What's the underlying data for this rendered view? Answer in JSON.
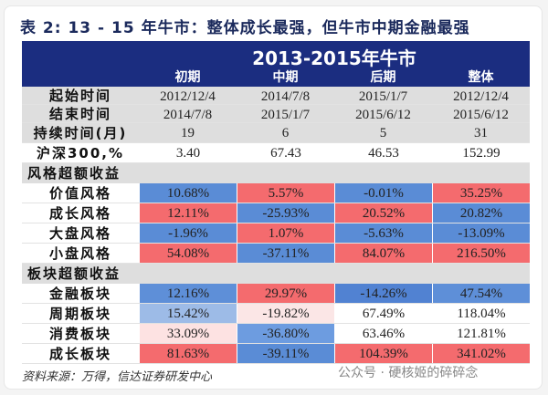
{
  "title": "表 2: 13 - 15 年牛市：整体成长最强，但牛市中期金融最强",
  "header": {
    "main": "2013-2015年牛市",
    "columns": [
      "初期",
      "中期",
      "后期",
      "整体"
    ]
  },
  "info_rows": [
    {
      "label": "起始时间",
      "values": [
        "2012/12/4",
        "2014/7/8",
        "2015/1/7",
        "2012/12/4"
      ]
    },
    {
      "label": "结束时间",
      "values": [
        "2014/7/8",
        "2015/1/7",
        "2015/6/12",
        "2015/6/12"
      ]
    },
    {
      "label": "持续时间(月)",
      "values": [
        "19",
        "6",
        "5",
        "31"
      ]
    },
    {
      "label": "沪深300,%",
      "values": [
        "3.40",
        "67.43",
        "46.53",
        "152.99"
      ]
    }
  ],
  "style_section": {
    "label": "风格超额收益",
    "rows": [
      {
        "label": "价值风格",
        "values": [
          "10.68%",
          "5.57%",
          "-0.01%",
          "35.25%"
        ],
        "colors": [
          "#5a8cd6",
          "#f46b6e",
          "#5a8cd6",
          "#f46b6e"
        ]
      },
      {
        "label": "成长风格",
        "values": [
          "12.11%",
          "-25.93%",
          "20.52%",
          "20.82%"
        ],
        "colors": [
          "#f46b6e",
          "#5a8cd6",
          "#f46b6e",
          "#5a8cd6"
        ]
      },
      {
        "label": "大盘风格",
        "values": [
          "-1.96%",
          "1.07%",
          "-5.63%",
          "-13.09%"
        ],
        "colors": [
          "#5a8cd6",
          "#f46b6e",
          "#5a8cd6",
          "#5a8cd6"
        ]
      },
      {
        "label": "小盘风格",
        "values": [
          "54.08%",
          "-37.11%",
          "84.07%",
          "216.50%"
        ],
        "colors": [
          "#f46b6e",
          "#5a8cd6",
          "#f46b6e",
          "#f46b6e"
        ]
      }
    ]
  },
  "sector_section": {
    "label": "板块超额收益",
    "rows": [
      {
        "label": "金融板块",
        "values": [
          "12.16%",
          "29.97%",
          "-14.26%",
          "47.54%"
        ],
        "colors": [
          "#5e8fd8",
          "#f46b6e",
          "#5182d2",
          "#5e8fd8"
        ]
      },
      {
        "label": "周期板块",
        "values": [
          "15.42%",
          "-19.82%",
          "67.49%",
          "118.04%"
        ],
        "colors": [
          "#9dbbe7",
          "#fbe6e6",
          "#ffffff",
          "#ffffff"
        ]
      },
      {
        "label": "消费板块",
        "values": [
          "33.09%",
          "-36.80%",
          "63.46%",
          "121.81%"
        ],
        "colors": [
          "#fde2e2",
          "#6d9ce0",
          "#ffffff",
          "#ffffff"
        ]
      },
      {
        "label": "成长板块",
        "values": [
          "81.63%",
          "-39.11%",
          "104.39%",
          "341.02%"
        ],
        "colors": [
          "#f46b6e",
          "#5a8cd6",
          "#f46b6e",
          "#f46b6e"
        ]
      }
    ]
  },
  "source": "资料来源：万得，信达证券研发中心",
  "watermark": "公众号 · 硬核姬的碎碎念"
}
